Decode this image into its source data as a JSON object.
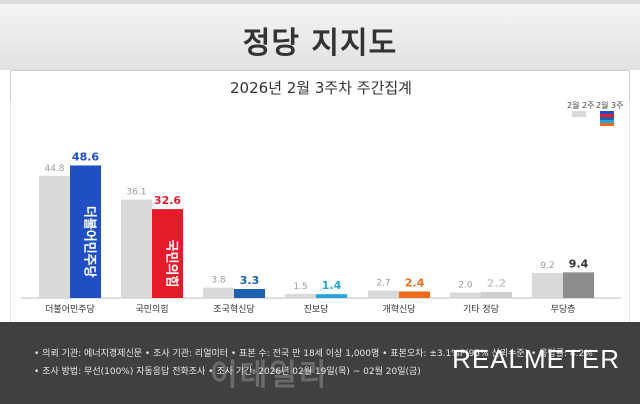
{
  "header": {
    "title": "정당 지지도",
    "subtitle": "2026년 2월 3주차 주간집계"
  },
  "legend": {
    "prev_label": "2월 2주",
    "curr_label": "2월 3주"
  },
  "colors": {
    "prev_bar": "#d9d9d9",
    "democratic": "#1f4fc2",
    "ppp": "#e41b2b",
    "rebuilding": "#1d5fb0",
    "progressive": "#23a6dc",
    "reform": "#f06a1b",
    "other": "#cfcfcf",
    "independent": "#8c8c8c",
    "value_default": "#333333"
  },
  "chart_data": {
    "type": "bar",
    "title": "정당 지지도",
    "subtitle": "2026년 2월 3주차 주간집계",
    "categories": [
      "더불어민주당",
      "국민의힘",
      "조국혁신당",
      "진보당",
      "개혁신당",
      "기타 정당",
      "무당층"
    ],
    "series": [
      {
        "name": "2월 2주",
        "values": [
          44.8,
          36.1,
          3.8,
          1.5,
          2.7,
          2.0,
          9.2
        ]
      },
      {
        "name": "2월 3주",
        "values": [
          48.6,
          32.6,
          3.3,
          1.4,
          2.4,
          2.2,
          9.4
        ]
      }
    ],
    "bar_labels": [
      "더불어민주당",
      "국민의힘"
    ],
    "ylim": [
      0,
      55
    ],
    "grid": false
  },
  "footer": {
    "line1": "• 의뢰 기관: 에너지경제신문   • 조사 기관: 리얼미터   • 표본 수: 전국 만 18세 이상 1,000명   • 표본오차: ±3.1%P(95% 신뢰수준)   • 응답률: 4.2%",
    "line2": "• 조사 방법: 무선(100%) 자동응답 전화조사   • 조사 기간: 2026년 02월 19일(목) ~ 02월 20일(금)",
    "brand": "REALMETER",
    "watermark": "이데일리"
  }
}
